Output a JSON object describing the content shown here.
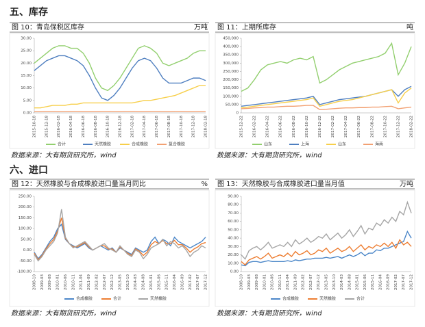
{
  "headings": [
    "五、库存",
    "六、进口"
  ],
  "chart_data": [
    {
      "type": "line",
      "title": "图 10：青岛保税区库存",
      "unit": "万吨",
      "source": "数据来源：大有期货研究所，wind",
      "categories": [
        "2015-10-18",
        null,
        "2015-12-18",
        null,
        "2016-02-18",
        null,
        "2016-04-18",
        null,
        "2016-06-18",
        null,
        "2016-08-18",
        null,
        "2016-10-18",
        null,
        "2016-12-18",
        null,
        "2017-02-18",
        null,
        "2017-04-18",
        null,
        "2017-06-18",
        null,
        "2017-08-18",
        null,
        "2017-10-18",
        null,
        "2017-12-18",
        null,
        "2018-02-18"
      ],
      "ylim": [
        0,
        30
      ],
      "yticks": [
        {
          "value": 0,
          "label": "0.00"
        },
        {
          "value": 5,
          "label": "5.00"
        },
        {
          "value": 10,
          "label": "10.00"
        },
        {
          "value": 15,
          "label": "15.00"
        },
        {
          "value": 20,
          "label": "20.00"
        },
        {
          "value": 25,
          "label": "25.00"
        },
        {
          "value": 30,
          "label": "30.00"
        }
      ],
      "series": [
        {
          "name": "合计",
          "color": "#92cf6e",
          "values": [
            20,
            22,
            24,
            26,
            27,
            27,
            26,
            26,
            24,
            20,
            14,
            10,
            9,
            11,
            14,
            18,
            22,
            26,
            27,
            26,
            24,
            20,
            19,
            20,
            21,
            22,
            24,
            25,
            25
          ]
        },
        {
          "name": "天然橡胶",
          "color": "#4f7fc0",
          "values": [
            17,
            19,
            21,
            22,
            23,
            23,
            22,
            21,
            19,
            15,
            10,
            6,
            5,
            7,
            10,
            14,
            18,
            21,
            22,
            21,
            18,
            14,
            12,
            12,
            12,
            13,
            14,
            14,
            13
          ]
        },
        {
          "name": "合成橡胶",
          "color": "#f7cf4a",
          "values": [
            2,
            2,
            2.5,
            3,
            3,
            3,
            3.5,
            3.5,
            4,
            4,
            4,
            4,
            4,
            4,
            4,
            4,
            4,
            4.5,
            5,
            5,
            5.5,
            6,
            6.5,
            7,
            8,
            9,
            10,
            11,
            11
          ]
        },
        {
          "name": "复合橡胶",
          "color": "#f2a072",
          "values": [
            0.5,
            0.5,
            0.6,
            0.6,
            0.5,
            0.5,
            0.6,
            0.6,
            0.5,
            0.5,
            0.5,
            0.6,
            0.6,
            0.5,
            0.5,
            0.6,
            0.6,
            0.5,
            0.5,
            0.6,
            0.6,
            0.5,
            0.5,
            0.6,
            0.6,
            0.5,
            0.5,
            0.6,
            0.6
          ]
        }
      ]
    },
    {
      "type": "line",
      "title": "图 11：上期所库存",
      "unit": "吨",
      "source": "数据来源：大有期货研究所，wind",
      "categories": [
        "2015-12-22",
        null,
        "2016-02-22",
        null,
        "2016-04-22",
        null,
        "2016-06-22",
        null,
        "2016-08-22",
        null,
        "2016-10-22",
        null,
        "2016-12-22",
        null,
        "2017-02-22",
        null,
        "2017-04-22",
        null,
        "2017-06-22",
        null,
        "2017-08-22",
        null,
        "2017-10-22",
        null,
        "2017-12-22",
        null,
        "2018-02-22"
      ],
      "ylim": [
        0,
        450000
      ],
      "yticks": [
        0,
        {
          "value": 50000,
          "label": "50,000"
        },
        {
          "value": 100000,
          "label": "100,000"
        },
        {
          "value": 150000,
          "label": "150,000"
        },
        {
          "value": 200000,
          "label": "200,000"
        },
        {
          "value": 250000,
          "label": "250,000"
        },
        {
          "value": 300000,
          "label": "300,000"
        },
        {
          "value": 350000,
          "label": "350,000"
        },
        {
          "value": 400000,
          "label": "400,000"
        },
        {
          "value": 450000,
          "label": "450,000"
        }
      ],
      "series": [
        {
          "name": "山东",
          "color": "#92cf6e",
          "values": [
            130000,
            150000,
            200000,
            260000,
            290000,
            300000,
            310000,
            300000,
            320000,
            330000,
            320000,
            340000,
            180000,
            200000,
            230000,
            260000,
            280000,
            300000,
            310000,
            320000,
            330000,
            340000,
            360000,
            420000,
            230000,
            300000,
            400000
          ]
        },
        {
          "name": "上海",
          "color": "#4f7fc0",
          "values": [
            40000,
            45000,
            50000,
            55000,
            60000,
            65000,
            70000,
            75000,
            80000,
            85000,
            90000,
            100000,
            50000,
            60000,
            70000,
            80000,
            85000,
            90000,
            95000,
            100000,
            110000,
            120000,
            130000,
            140000,
            100000,
            140000,
            160000
          ]
        },
        {
          "name": "山东",
          "color": "#f7cf4a",
          "values": [
            30000,
            35000,
            40000,
            45000,
            50000,
            55000,
            60000,
            65000,
            70000,
            75000,
            80000,
            90000,
            40000,
            50000,
            60000,
            70000,
            75000,
            80000,
            90000,
            100000,
            110000,
            120000,
            130000,
            140000,
            60000,
            120000,
            150000
          ]
        },
        {
          "name": "海南",
          "color": "#f2a072",
          "values": [
            25000,
            27000,
            30000,
            32000,
            35000,
            35000,
            38000,
            40000,
            40000,
            42000,
            45000,
            45000,
            20000,
            22000,
            25000,
            28000,
            30000,
            30000,
            32000,
            32000,
            35000,
            35000,
            38000,
            40000,
            25000,
            30000,
            35000
          ]
        }
      ]
    },
    {
      "type": "line",
      "title": "图 12：天然橡胶与合成橡胶进口量当月同比",
      "unit": "%",
      "source": "数据来源：大有期货研究所，wind",
      "categories": [
        "2008-10",
        null,
        "2009-03",
        null,
        "2009-08",
        null,
        "2010-01",
        null,
        "2010-06",
        null,
        "2010-11",
        null,
        "2011-04",
        null,
        "2011-09",
        null,
        "2012-02",
        null,
        "2012-07",
        null,
        "2012-12",
        null,
        "2013-05",
        null,
        "2013-10",
        null,
        "2014-03",
        null,
        "2014-08",
        null,
        "2015-01",
        null,
        "2015-06",
        null,
        "2015-11",
        null,
        "2016-04",
        null,
        "2016-09",
        null,
        "2017-02",
        null,
        "2017-07",
        null,
        "2017-12"
      ],
      "ylim": [
        -100,
        250
      ],
      "yticks": [
        {
          "value": -100,
          "label": "-100.00"
        },
        {
          "value": -50,
          "label": "-50.00"
        },
        {
          "value": 0,
          "label": "0.00"
        },
        {
          "value": 50,
          "label": "50.00"
        },
        {
          "value": 100,
          "label": "100.00"
        },
        {
          "value": 150,
          "label": "150.00"
        },
        {
          "value": 200,
          "label": "200.00"
        },
        {
          "value": 250,
          "label": "250.00"
        }
      ],
      "series": [
        {
          "name": "合成橡胶",
          "color": "#4a86c8",
          "values": [
            -10,
            -40,
            -20,
            10,
            40,
            60,
            100,
            120,
            50,
            30,
            20,
            10,
            20,
            30,
            10,
            0,
            10,
            20,
            10,
            0,
            10,
            -10,
            10,
            0,
            -10,
            -20,
            10,
            0,
            -10,
            0,
            40,
            60,
            30,
            50,
            40,
            20,
            60,
            40,
            30,
            20,
            10,
            20,
            30,
            40,
            60
          ]
        },
        {
          "name": "合计",
          "color": "#ed7d31",
          "values": [
            -15,
            -45,
            -25,
            5,
            30,
            50,
            90,
            150,
            55,
            30,
            15,
            15,
            25,
            35,
            15,
            0,
            10,
            20,
            20,
            5,
            5,
            -10,
            15,
            0,
            -15,
            -25,
            5,
            -5,
            -25,
            -10,
            25,
            40,
            30,
            45,
            30,
            30,
            45,
            25,
            25,
            10,
            -10,
            5,
            15,
            30,
            35
          ]
        },
        {
          "name": "天然橡胶",
          "color": "#a5a5a5",
          "values": [
            -20,
            -50,
            -30,
            0,
            20,
            40,
            80,
            190,
            60,
            30,
            10,
            20,
            30,
            40,
            20,
            0,
            10,
            20,
            30,
            10,
            0,
            -10,
            20,
            0,
            -20,
            -30,
            0,
            -10,
            -40,
            -20,
            10,
            20,
            30,
            50,
            20,
            40,
            30,
            10,
            20,
            0,
            -30,
            -10,
            0,
            20,
            10
          ]
        }
      ]
    },
    {
      "type": "line",
      "title": "图 13：天然橡胶与合成橡胶进口量当月值",
      "unit": "万吨",
      "source": "数据来源：大有期货研究所，wind",
      "categories": [
        "2008-10",
        null,
        "2009-03",
        null,
        "2009-08",
        null,
        "2010-01",
        null,
        "2010-06",
        null,
        "2010-11",
        null,
        "2011-04",
        null,
        "2011-09",
        null,
        "2012-02",
        null,
        "2012-07",
        null,
        "2012-12",
        null,
        "2013-05",
        null,
        "2013-10",
        null,
        "2014-03",
        null,
        "2014-08",
        null,
        "2015-01",
        null,
        "2015-06",
        null,
        "2015-11",
        null,
        "2016-04",
        null,
        "2016-09",
        null,
        "2017-02",
        null,
        "2017-07",
        null,
        "2017-12"
      ],
      "ylim": [
        0,
        90
      ],
      "yticks": [
        {
          "value": 0,
          "label": "0.00"
        },
        {
          "value": 10,
          "label": "10.00"
        },
        {
          "value": 20,
          "label": "20.00"
        },
        {
          "value": 30,
          "label": "30.00"
        },
        {
          "value": 40,
          "label": "40.00"
        },
        {
          "value": 50,
          "label": "50.00"
        },
        {
          "value": 60,
          "label": "60.00"
        },
        {
          "value": 70,
          "label": "70.00"
        },
        {
          "value": 80,
          "label": "80.00"
        },
        {
          "value": 90,
          "label": "90.00"
        }
      ],
      "series": [
        {
          "name": "合成橡胶",
          "color": "#4a86c8",
          "values": [
            8,
            7,
            11,
            12,
            12,
            11,
            12,
            13,
            12,
            12,
            12,
            12,
            13,
            12,
            14,
            13,
            14,
            15,
            15,
            16,
            16,
            16,
            17,
            16,
            17,
            18,
            16,
            18,
            20,
            18,
            20,
            23,
            19,
            22,
            22,
            26,
            25,
            28,
            28,
            30,
            32,
            34,
            36,
            48,
            40
          ]
        },
        {
          "name": "天然橡胶",
          "color": "#ed7d31",
          "values": [
            12,
            8,
            14,
            16,
            18,
            15,
            18,
            22,
            16,
            18,
            20,
            18,
            22,
            18,
            24,
            20,
            22,
            25,
            20,
            22,
            26,
            24,
            28,
            22,
            25,
            28,
            24,
            26,
            30,
            24,
            28,
            32,
            26,
            30,
            28,
            32,
            30,
            34,
            30,
            35,
            28,
            38,
            32,
            35,
            30
          ]
        },
        {
          "name": "合计",
          "color": "#a5a5a5",
          "values": [
            20,
            15,
            25,
            28,
            30,
            26,
            30,
            35,
            28,
            30,
            32,
            30,
            35,
            30,
            38,
            33,
            36,
            40,
            35,
            38,
            42,
            40,
            45,
            38,
            42,
            46,
            40,
            44,
            50,
            42,
            48,
            55,
            45,
            52,
            50,
            58,
            55,
            62,
            58,
            65,
            60,
            72,
            68,
            83,
            70
          ]
        }
      ]
    }
  ]
}
